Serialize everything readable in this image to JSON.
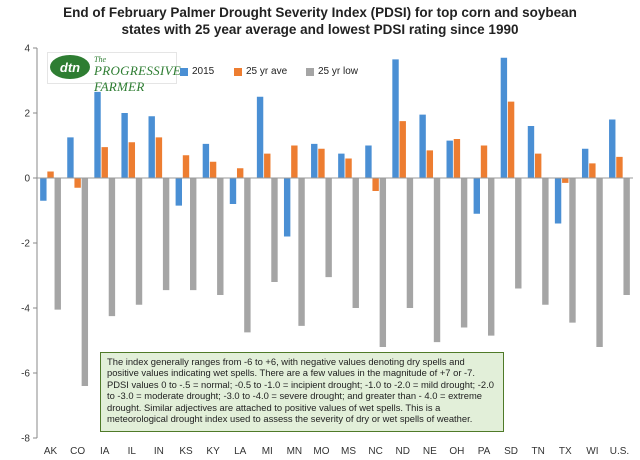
{
  "chart_data": {
    "type": "bar",
    "title_line1": "End of February Palmer Drought Severity Index (PDSI) for top corn and soybean",
    "title_line2": "states with 25 year average and lowest PDSI rating since 1990",
    "categories": [
      "AK",
      "CO",
      "IA",
      "IL",
      "IN",
      "KS",
      "KY",
      "LA",
      "MI",
      "MN",
      "MO",
      "MS",
      "NC",
      "ND",
      "NE",
      "OH",
      "PA",
      "SD",
      "TN",
      "TX",
      "WI",
      "U.S."
    ],
    "series": [
      {
        "name": "2015",
        "color": "#4a8fd4",
        "values": [
          -0.7,
          1.25,
          2.65,
          2.0,
          1.9,
          -0.85,
          1.05,
          -0.8,
          2.5,
          -1.8,
          1.05,
          0.75,
          1.0,
          3.65,
          1.95,
          1.15,
          -1.1,
          3.7,
          1.6,
          -1.4,
          0.9,
          1.8
        ]
      },
      {
        "name": "25 yr ave",
        "color": "#ed7d31",
        "values": [
          0.2,
          -0.3,
          0.95,
          1.1,
          1.25,
          0.7,
          0.5,
          0.3,
          0.75,
          1.0,
          0.9,
          0.6,
          -0.4,
          1.75,
          0.85,
          1.2,
          1.0,
          2.35,
          0.75,
          -0.15,
          0.45,
          0.65
        ]
      },
      {
        "name": "25 yr low",
        "color": "#a5a5a5",
        "values": [
          -4.05,
          -6.4,
          -4.25,
          -3.9,
          -3.45,
          -3.45,
          -3.6,
          -4.75,
          -3.2,
          -4.55,
          -3.05,
          -4.0,
          -5.2,
          -4.0,
          -5.05,
          -4.6,
          -4.85,
          -3.4,
          -3.9,
          -4.45,
          -5.2,
          -3.6
        ]
      }
    ],
    "yticks": [
      "4",
      "2",
      "0",
      "-2",
      "-4",
      "-6",
      "-8"
    ],
    "ylim": [
      -8,
      4
    ],
    "xlabel": "",
    "ylabel": "",
    "grid": false,
    "legend_position": "top"
  },
  "logo": {
    "badge": "dtn",
    "small_text": "The",
    "text": "PROGRESSIVE FARMER"
  },
  "note": "The index generally ranges from -6 to +6, with negative values denoting dry spells and positive values indicating wet spells. There are a few values in the magnitude of +7 or -7. PDSI values 0 to -.5 = normal; -0.5 to -1.0 = incipient drought; -1.0 to -2.0 = mild drought; -2.0 to -3.0 = moderate drought; -3.0 to -4.0 = severe drought; and greater than - 4.0 = extreme drought. Similar adjectives are attached to positive values of wet spells. This is a meteorological drought index used to assess the severity of dry or wet spells of weather."
}
